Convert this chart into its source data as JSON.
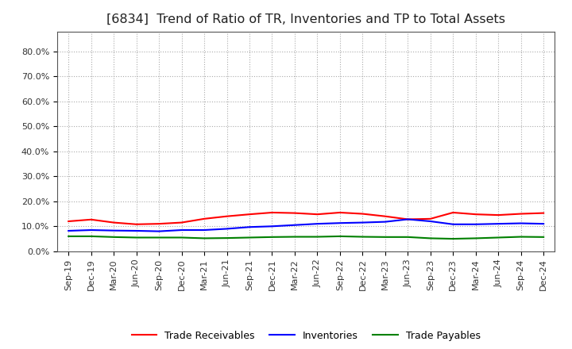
{
  "title": "[6834]  Trend of Ratio of TR, Inventories and TP to Total Assets",
  "x_labels": [
    "Sep-19",
    "Dec-19",
    "Mar-20",
    "Jun-20",
    "Sep-20",
    "Dec-20",
    "Mar-21",
    "Jun-21",
    "Sep-21",
    "Dec-21",
    "Mar-22",
    "Jun-22",
    "Sep-22",
    "Dec-22",
    "Mar-23",
    "Jun-23",
    "Sep-23",
    "Dec-23",
    "Mar-24",
    "Jun-24",
    "Sep-24",
    "Dec-24"
  ],
  "trade_receivables": [
    0.12,
    0.127,
    0.115,
    0.108,
    0.11,
    0.115,
    0.13,
    0.14,
    0.148,
    0.155,
    0.153,
    0.148,
    0.155,
    0.15,
    0.14,
    0.128,
    0.13,
    0.155,
    0.148,
    0.145,
    0.15,
    0.153
  ],
  "inventories": [
    0.082,
    0.085,
    0.083,
    0.082,
    0.08,
    0.085,
    0.085,
    0.09,
    0.097,
    0.1,
    0.105,
    0.11,
    0.113,
    0.115,
    0.118,
    0.128,
    0.12,
    0.108,
    0.108,
    0.11,
    0.112,
    0.11
  ],
  "trade_payables": [
    0.06,
    0.06,
    0.057,
    0.055,
    0.055,
    0.055,
    0.052,
    0.053,
    0.055,
    0.057,
    0.058,
    0.058,
    0.06,
    0.058,
    0.057,
    0.057,
    0.052,
    0.05,
    0.052,
    0.055,
    0.058,
    0.057
  ],
  "tr_color": "#FF0000",
  "inv_color": "#0000FF",
  "tp_color": "#008000",
  "ylim": [
    0.0,
    0.88
  ],
  "yticks": [
    0.0,
    0.1,
    0.2,
    0.3,
    0.4,
    0.5,
    0.6,
    0.7,
    0.8
  ],
  "background_color": "#FFFFFF",
  "plot_bg_color": "#FFFFFF",
  "grid_color": "#AAAAAA",
  "legend_labels": [
    "Trade Receivables",
    "Inventories",
    "Trade Payables"
  ],
  "title_fontsize": 11.5,
  "tick_fontsize": 8,
  "legend_fontsize": 9,
  "title_color": "#222222"
}
